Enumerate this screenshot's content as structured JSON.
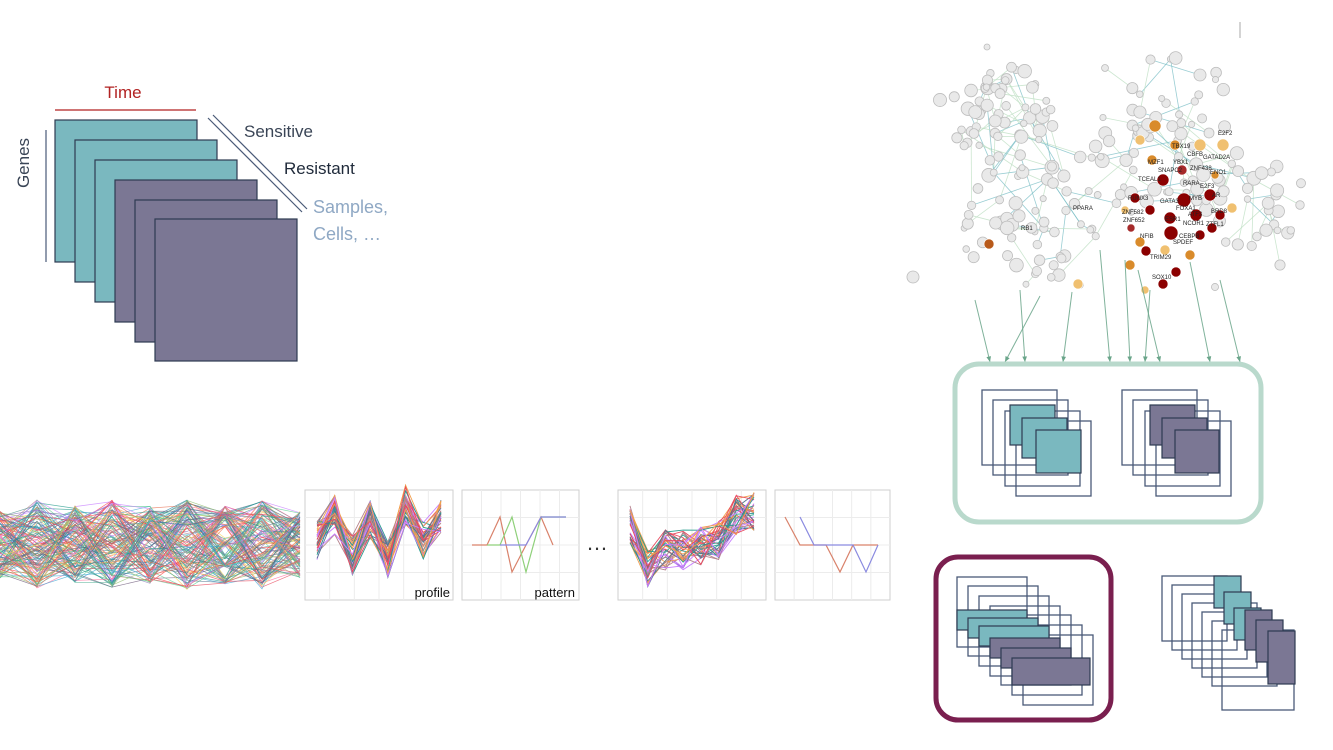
{
  "tensor": {
    "time_label": "Time",
    "genes_label": "Genes",
    "sensitive_label": "Sensitive",
    "resistant_label": "Resistant",
    "samples_label_line1": "Samples,",
    "samples_label_line2": "Cells, …"
  },
  "profiles": {
    "profile_label": "profile",
    "pattern_label": "pattern",
    "ellipsis": "…"
  },
  "network": {
    "gene_labels": [
      "E2F2",
      "TBX19",
      "CBFB",
      "GATAD2A",
      "MZF1",
      "YBX1",
      "ZNF438",
      "ENO1",
      "SNAPC2",
      "TCEAL1",
      "RARA",
      "E2F3",
      "RUNX3",
      "MYB",
      "AR",
      "GATA3",
      "FOXA1",
      "BRD8",
      "ZNF582",
      "PPARA",
      "ZNF652",
      "ESR1",
      "NCOR1",
      "ATF3",
      "ZTFL1",
      "RB1",
      "NFIB",
      "CEBPB",
      "SPDEF",
      "TRIM29",
      "SOX10"
    ]
  },
  "colors": {
    "teal": "#7ab8bf",
    "purple": "#7b7794",
    "outline": "#4a5a78",
    "time_red": "#b22222",
    "dark_text": "#3a4556",
    "light_text": "#8fa8c4",
    "panel_green": "#b9d9cc",
    "panel_maroon": "#7a1f4f"
  }
}
